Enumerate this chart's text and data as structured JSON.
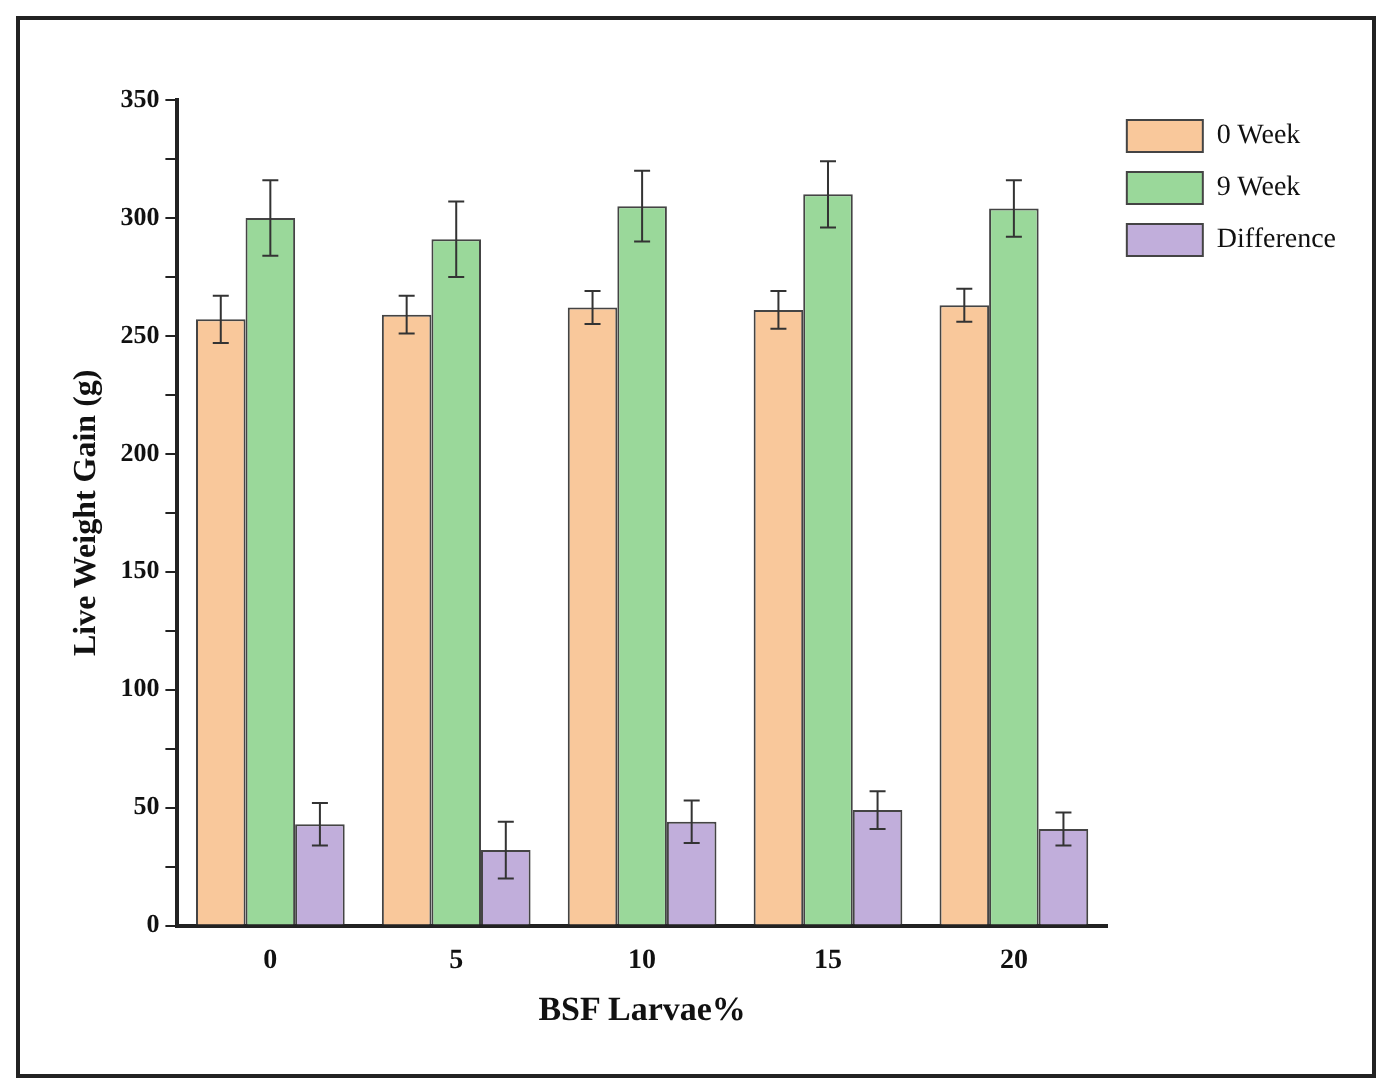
{
  "chart_data": {
    "type": "bar",
    "xlabel": "BSF Larvae%",
    "ylabel": "Live Weight Gain (g)",
    "categories": [
      "0",
      "5",
      "10",
      "15",
      "20"
    ],
    "series": [
      {
        "name": "0 Week",
        "color": "#f9c89b",
        "values": [
          257,
          259,
          262,
          261,
          263
        ],
        "errors": [
          10,
          8,
          7,
          8,
          7
        ]
      },
      {
        "name": "9 Week",
        "color": "#9ad89a",
        "values": [
          300,
          291,
          305,
          310,
          304
        ],
        "errors": [
          16,
          16,
          15,
          14,
          12
        ]
      },
      {
        "name": "Difference",
        "color": "#c1aedb",
        "values": [
          43,
          32,
          44,
          49,
          41
        ],
        "errors": [
          9,
          12,
          9,
          8,
          7
        ]
      }
    ],
    "ylim": [
      0,
      350
    ],
    "yticks": [
      0,
      {
        "value": 25,
        "label": null
      },
      50,
      {
        "value": 75,
        "label": null
      },
      100,
      {
        "value": 125,
        "label": null
      },
      150,
      {
        "value": 175,
        "label": null
      },
      200,
      {
        "value": 225,
        "label": null
      },
      250,
      {
        "value": 275,
        "label": null
      },
      300,
      {
        "value": 325,
        "label": null
      },
      350
    ],
    "grid": false,
    "legend": "top right"
  }
}
